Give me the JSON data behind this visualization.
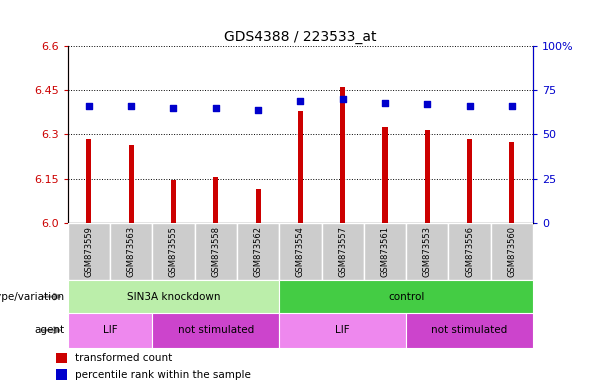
{
  "title": "GDS4388 / 223533_at",
  "samples": [
    "GSM873559",
    "GSM873563",
    "GSM873555",
    "GSM873558",
    "GSM873562",
    "GSM873554",
    "GSM873557",
    "GSM873561",
    "GSM873553",
    "GSM873556",
    "GSM873560"
  ],
  "bar_values": [
    6.285,
    6.265,
    6.145,
    6.155,
    6.115,
    6.38,
    6.46,
    6.325,
    6.315,
    6.285,
    6.275
  ],
  "dot_values": [
    66,
    66,
    65,
    65,
    64,
    69,
    70,
    68,
    67,
    66,
    66
  ],
  "ylim_left": [
    6.0,
    6.6
  ],
  "ylim_right": [
    0,
    100
  ],
  "yticks_left": [
    6.0,
    6.15,
    6.3,
    6.45,
    6.6
  ],
  "yticks_right": [
    0,
    25,
    50,
    75,
    100
  ],
  "bar_color": "#cc0000",
  "dot_color": "#0000cc",
  "bar_bottom": 6.0,
  "bar_width": 0.12,
  "genotype_groups": [
    {
      "label": "SIN3A knockdown",
      "start": 0,
      "end": 5,
      "color": "#bbeeaa"
    },
    {
      "label": "control",
      "start": 5,
      "end": 11,
      "color": "#44cc44"
    }
  ],
  "agent_groups": [
    {
      "label": "LIF",
      "start": 0,
      "end": 2,
      "color": "#ee88ee"
    },
    {
      "label": "not stimulated",
      "start": 2,
      "end": 5,
      "color": "#cc44cc"
    },
    {
      "label": "LIF",
      "start": 5,
      "end": 8,
      "color": "#ee88ee"
    },
    {
      "label": "not stimulated",
      "start": 8,
      "end": 11,
      "color": "#cc44cc"
    }
  ],
  "sample_col_color": "#cccccc",
  "sample_col_edge": "#ffffff",
  "background_color": "#ffffff",
  "tick_color_left": "#cc0000",
  "tick_color_right": "#0000cc",
  "title_fontsize": 10,
  "tick_fontsize": 8,
  "sample_fontsize": 6,
  "label_fontsize": 7.5,
  "legend_fontsize": 7.5,
  "grid_color": "#000000",
  "grid_linestyle": "dotted",
  "grid_linewidth": 0.7
}
